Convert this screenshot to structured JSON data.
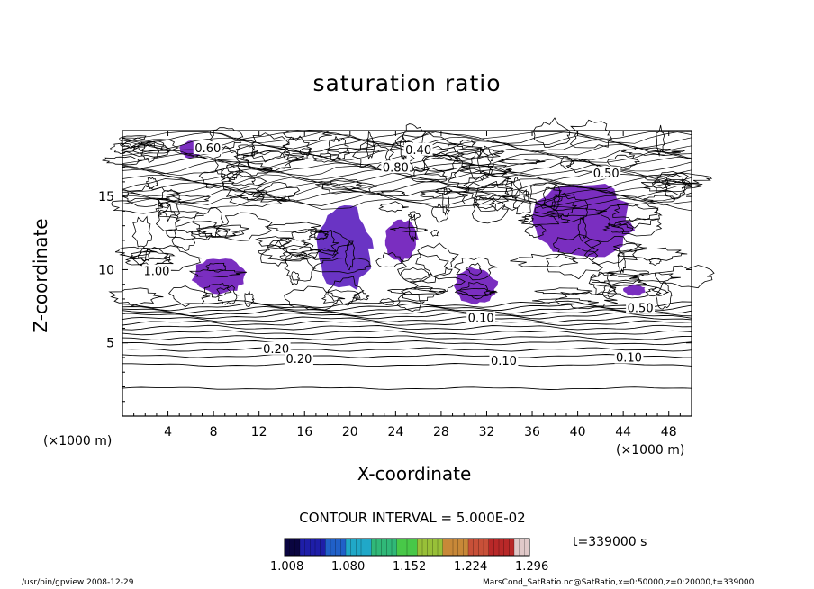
{
  "chart_data": {
    "type": "heatmap",
    "title": "saturation ratio",
    "xlabel": "X-coordinate",
    "ylabel": "Z-coordinate",
    "x_unit": "(×1000 m)",
    "y_unit": "",
    "xlim": [
      0,
      50
    ],
    "ylim": [
      0,
      19.5
    ],
    "x_ticks": [
      4,
      8,
      12,
      16,
      20,
      24,
      28,
      32,
      36,
      40,
      44,
      48
    ],
    "y_ticks": [
      5,
      10,
      15
    ],
    "contour_labels": [
      "0.10",
      "0.20",
      "0.10",
      "0.10",
      "0.20",
      "0.50",
      "0.60",
      "0.40",
      "0.80",
      "0.50",
      "1.00"
    ],
    "contour_interval": "CONTOUR INTERVAL = 5.000E-02",
    "colorbar": {
      "ticks": [
        "1.008",
        "1.080",
        "1.152",
        "1.224",
        "1.296"
      ],
      "colors": [
        "#0a0540",
        "#1e1ea8",
        "#2060c8",
        "#20a8c8",
        "#30b878",
        "#48c848",
        "#98c038",
        "#c88838",
        "#c85038",
        "#b82828",
        "#e0c8c8"
      ]
    },
    "time": "t=339000 s",
    "shaded_regions": [
      {
        "x": [
          5,
          7
        ],
        "z": [
          17.6,
          18.8
        ],
        "max": 1.1
      },
      {
        "x": [
          6,
          11
        ],
        "z": [
          8.3,
          10.8
        ],
        "max": 1.08
      },
      {
        "x": [
          17,
          22
        ],
        "z": [
          8.4,
          14.5
        ],
        "max": 1.18
      },
      {
        "x": [
          23,
          26
        ],
        "z": [
          10.5,
          13.5
        ],
        "max": 1.1
      },
      {
        "x": [
          29,
          33
        ],
        "z": [
          7.6,
          10.2
        ],
        "max": 1.12
      },
      {
        "x": [
          36,
          45
        ],
        "z": [
          10.5,
          16.2
        ],
        "max": 1.1
      },
      {
        "x": [
          44,
          46
        ],
        "z": [
          8.2,
          9
        ],
        "max": 1.05
      }
    ]
  },
  "footer": {
    "left": "/usr/bin/gpview  2008-12-29",
    "right": "MarsCond_SatRatio.nc@SatRatio,x=0:50000,z=0:20000,t=339000"
  }
}
